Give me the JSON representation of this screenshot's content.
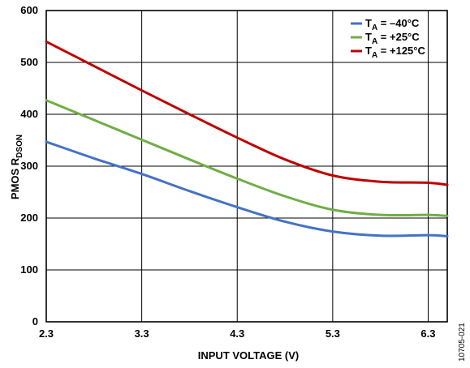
{
  "chart_data": {
    "type": "line",
    "xlabel": "INPUT VOLTAGE (V)",
    "ylabel": {
      "main": "PMOS R",
      "subscript": "DSON"
    },
    "xlim": [
      2.3,
      6.5
    ],
    "ylim": [
      0,
      600
    ],
    "xticks": [
      "2.3",
      "3.3",
      "4.3",
      "5.3",
      "6.3"
    ],
    "xtick_values": [
      2.3,
      3.3,
      4.3,
      5.3,
      6.3
    ],
    "yticks": [
      "0",
      "100",
      "200",
      "300",
      "400",
      "500",
      "600"
    ],
    "ytick_values": [
      0,
      100,
      200,
      300,
      400,
      500,
      600
    ],
    "grid": true,
    "legend_position": "top-right",
    "series": [
      {
        "label_prefix": "T",
        "label_sub": "A",
        "label_rest": " = –40°C",
        "color": "#4472c4",
        "x": [
          2.3,
          2.8,
          3.3,
          3.8,
          4.3,
          4.8,
          5.3,
          5.8,
          6.3,
          6.5
        ],
        "y": [
          347,
          315,
          285,
          252,
          221,
          193,
          174,
          166,
          167,
          165
        ]
      },
      {
        "label_prefix": "T",
        "label_sub": "A",
        "label_rest": " = +25°C",
        "color": "#70ad47",
        "x": [
          2.3,
          2.8,
          3.3,
          3.8,
          4.3,
          4.8,
          5.3,
          5.8,
          6.3,
          6.5
        ],
        "y": [
          427,
          389,
          351,
          313,
          276,
          242,
          216,
          206,
          206,
          204
        ]
      },
      {
        "label_prefix": "T",
        "label_sub": "A",
        "label_rest": " = +125°C",
        "color": "#c00000",
        "x": [
          2.3,
          2.8,
          3.3,
          3.8,
          4.3,
          4.8,
          5.3,
          5.8,
          6.3,
          6.5
        ],
        "y": [
          540,
          493,
          446,
          400,
          355,
          313,
          282,
          270,
          268,
          264
        ]
      }
    ]
  },
  "figure_id": "10705-021"
}
